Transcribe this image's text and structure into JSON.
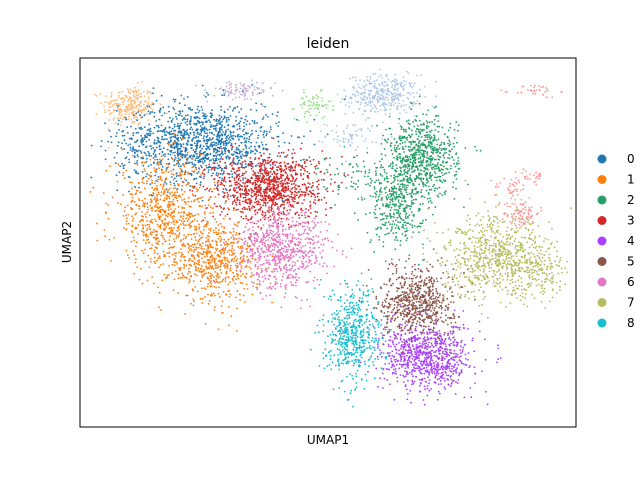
{
  "chart_data": {
    "type": "scatter",
    "title": "leiden",
    "xlabel": "UMAP1",
    "ylabel": "UMAP2",
    "xlim": [
      0,
      100
    ],
    "ylim": [
      0,
      100
    ],
    "grid": false,
    "legend_position": "right",
    "series": [
      {
        "name": "0",
        "color": "#1f77b4",
        "clusters": [
          {
            "cx": 24,
            "cy": 77,
            "sx": 9,
            "sy": 6,
            "n": 1300
          }
        ]
      },
      {
        "name": "1",
        "color": "#ff7f0e",
        "clusters": [
          {
            "cx": 17,
            "cy": 58,
            "sx": 6,
            "sy": 8,
            "n": 700
          },
          {
            "cx": 27,
            "cy": 45,
            "sx": 5,
            "sy": 6,
            "n": 600
          }
        ]
      },
      {
        "name": "2",
        "color": "#279e68",
        "clusters": [
          {
            "cx": 69,
            "cy": 73,
            "sx": 4,
            "sy": 6,
            "n": 700
          },
          {
            "cx": 64,
            "cy": 60,
            "sx": 3,
            "sy": 6,
            "n": 350
          },
          {
            "cx": 56,
            "cy": 68,
            "sx": 7,
            "sy": 4,
            "n": 120
          }
        ]
      },
      {
        "name": "3",
        "color": "#d62728",
        "clusters": [
          {
            "cx": 38,
            "cy": 65,
            "sx": 6,
            "sy": 5,
            "n": 1000
          }
        ]
      },
      {
        "name": "4",
        "color": "#aa40fc",
        "clusters": [
          {
            "cx": 70,
            "cy": 19,
            "sx": 5,
            "sy": 5,
            "n": 850
          }
        ]
      },
      {
        "name": "5",
        "color": "#8c564b",
        "clusters": [
          {
            "cx": 68,
            "cy": 34,
            "sx": 4,
            "sy": 5,
            "n": 650
          }
        ]
      },
      {
        "name": "6",
        "color": "#e377c2",
        "clusters": [
          {
            "cx": 41,
            "cy": 48,
            "sx": 5,
            "sy": 6,
            "n": 700
          }
        ]
      },
      {
        "name": "7",
        "color": "#b5bd61",
        "clusters": [
          {
            "cx": 84,
            "cy": 46,
            "sx": 6,
            "sy": 6,
            "n": 750
          },
          {
            "cx": 93,
            "cy": 42,
            "sx": 3,
            "sy": 4,
            "n": 150
          }
        ]
      },
      {
        "name": "8",
        "color": "#17becf",
        "clusters": [
          {
            "cx": 55,
            "cy": 25,
            "sx": 3,
            "sy": 7,
            "n": 550
          }
        ]
      }
    ],
    "extra_groups": [
      {
        "color": "#ffbb78",
        "clusters": [
          {
            "cx": 10,
            "cy": 87,
            "sx": 3,
            "sy": 3,
            "n": 250
          }
        ]
      },
      {
        "color": "#aec7e8",
        "clusters": [
          {
            "cx": 61,
            "cy": 90,
            "sx": 4,
            "sy": 3,
            "n": 350
          },
          {
            "cx": 55,
            "cy": 79,
            "sx": 3,
            "sy": 2,
            "n": 60
          }
        ]
      },
      {
        "color": "#c5b0d5",
        "clusters": [
          {
            "cx": 32,
            "cy": 91,
            "sx": 4,
            "sy": 1.5,
            "n": 90
          }
        ]
      },
      {
        "color": "#98df8a",
        "clusters": [
          {
            "cx": 47,
            "cy": 87,
            "sx": 2,
            "sy": 2,
            "n": 70
          }
        ]
      },
      {
        "color": "#ff9896",
        "clusters": [
          {
            "cx": 89,
            "cy": 58,
            "sx": 2,
            "sy": 2.5,
            "n": 100
          },
          {
            "cx": 87,
            "cy": 65,
            "sx": 2,
            "sy": 1.5,
            "n": 35
          },
          {
            "cx": 92,
            "cy": 91,
            "sx": 2.5,
            "sy": 1,
            "n": 35
          },
          {
            "cx": 91,
            "cy": 68,
            "sx": 1.5,
            "sy": 1,
            "n": 25
          }
        ]
      }
    ]
  }
}
